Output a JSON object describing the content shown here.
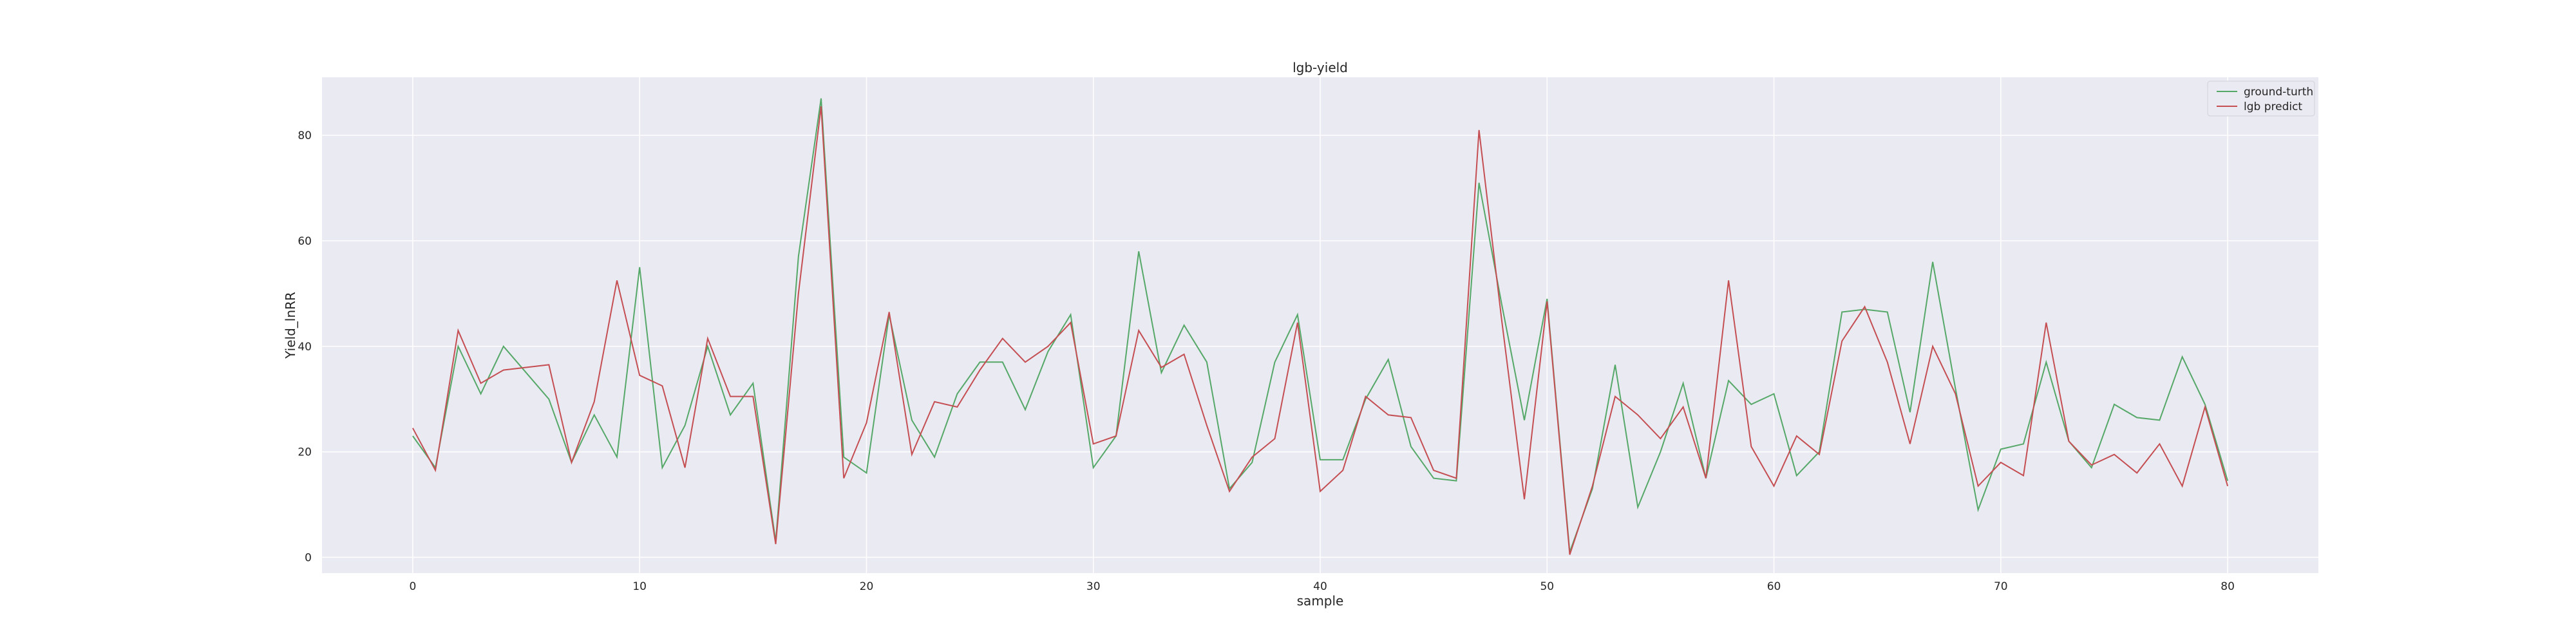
{
  "chart_data": {
    "type": "line",
    "title": "lgb-yield",
    "xlabel": "sample",
    "ylabel": "Yield_lnRR",
    "xlim": [
      -4,
      84
    ],
    "ylim": [
      -3,
      91
    ],
    "xticks": [
      0,
      10,
      20,
      30,
      40,
      50,
      60,
      70,
      80
    ],
    "yticks": [
      0,
      20,
      40,
      60,
      80
    ],
    "grid": true,
    "legend_position": "top-right",
    "background": "#eaeaf2",
    "x": [
      0,
      1,
      2,
      3,
      4,
      5,
      6,
      7,
      8,
      9,
      10,
      11,
      12,
      13,
      14,
      15,
      16,
      17,
      18,
      19,
      20,
      21,
      22,
      23,
      24,
      25,
      26,
      27,
      28,
      29,
      30,
      31,
      32,
      33,
      34,
      35,
      36,
      37,
      38,
      39,
      40,
      41,
      42,
      43,
      44,
      45,
      46,
      47,
      48,
      49,
      50,
      51,
      52,
      53,
      54,
      55,
      56,
      57,
      58,
      59,
      60,
      61,
      62,
      63,
      64,
      65,
      66,
      67,
      68,
      69,
      70,
      71,
      72,
      73,
      74,
      75,
      76,
      77,
      78,
      79,
      80
    ],
    "series": [
      {
        "name": "ground-turth",
        "color": "#55a868",
        "values": [
          23,
          17,
          40,
          31,
          40,
          35,
          30,
          18,
          27,
          19,
          55,
          17,
          25,
          40,
          27,
          33,
          3,
          57,
          87,
          19,
          16,
          46,
          26,
          19,
          31,
          37,
          37,
          28,
          39,
          46,
          17,
          23,
          58,
          35,
          44,
          37,
          13,
          18,
          37,
          46,
          18.5,
          18.5,
          30,
          37.5,
          21,
          15,
          14.5,
          71,
          48,
          26,
          49,
          1,
          13,
          36.5,
          9.5,
          20,
          33,
          15,
          33.5,
          29,
          31,
          15.5,
          20,
          46.5,
          47,
          46.5,
          27.5,
          56,
          32,
          9,
          20.5,
          21.5,
          37,
          22,
          17,
          29,
          26.5,
          26,
          38,
          29,
          14.5
        ]
      },
      {
        "name": "lgb predict",
        "color": "#c44e52",
        "values": [
          24.5,
          16.5,
          43,
          33,
          35.5,
          36,
          36.5,
          18,
          29.5,
          52.5,
          34.5,
          32.5,
          17,
          41.5,
          30.5,
          30.5,
          2.5,
          50,
          85.5,
          15,
          25.5,
          46.5,
          19.5,
          29.5,
          28.5,
          35.5,
          41.5,
          37,
          40,
          44.5,
          21.5,
          23,
          43,
          36,
          38.5,
          25,
          12.5,
          19,
          22.5,
          44.5,
          12.5,
          16.5,
          30.5,
          27,
          26.5,
          16.5,
          15,
          81,
          45,
          11,
          48.5,
          0.5,
          13.5,
          30.5,
          27,
          22.5,
          28.5,
          15,
          52.5,
          21,
          13.5,
          23,
          19.5,
          41,
          47.5,
          37,
          21.5,
          40,
          31,
          13.5,
          18,
          15.5,
          44.5,
          22,
          17.5,
          19.5,
          16,
          21.5,
          13.5,
          28.5,
          13.5
        ]
      }
    ]
  }
}
